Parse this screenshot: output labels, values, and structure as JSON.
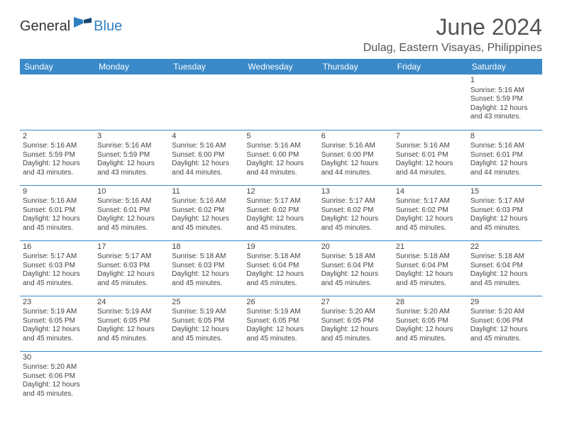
{
  "logo": {
    "part1": "General",
    "part2": "Blue"
  },
  "title": "June 2024",
  "location": "Dulag, Eastern Visayas, Philippines",
  "colors": {
    "header_bg": "#3a8ac9",
    "header_text": "#ffffff",
    "border": "#3a8ac9",
    "text": "#444444",
    "title_text": "#555555",
    "logo_accent": "#2f7fc1"
  },
  "weekdays": [
    "Sunday",
    "Monday",
    "Tuesday",
    "Wednesday",
    "Thursday",
    "Friday",
    "Saturday"
  ],
  "weeks": [
    [
      null,
      null,
      null,
      null,
      null,
      null,
      {
        "n": "1",
        "sr": "Sunrise: 5:16 AM",
        "ss": "Sunset: 5:59 PM",
        "d1": "Daylight: 12 hours",
        "d2": "and 43 minutes."
      }
    ],
    [
      {
        "n": "2",
        "sr": "Sunrise: 5:16 AM",
        "ss": "Sunset: 5:59 PM",
        "d1": "Daylight: 12 hours",
        "d2": "and 43 minutes."
      },
      {
        "n": "3",
        "sr": "Sunrise: 5:16 AM",
        "ss": "Sunset: 5:59 PM",
        "d1": "Daylight: 12 hours",
        "d2": "and 43 minutes."
      },
      {
        "n": "4",
        "sr": "Sunrise: 5:16 AM",
        "ss": "Sunset: 6:00 PM",
        "d1": "Daylight: 12 hours",
        "d2": "and 44 minutes."
      },
      {
        "n": "5",
        "sr": "Sunrise: 5:16 AM",
        "ss": "Sunset: 6:00 PM",
        "d1": "Daylight: 12 hours",
        "d2": "and 44 minutes."
      },
      {
        "n": "6",
        "sr": "Sunrise: 5:16 AM",
        "ss": "Sunset: 6:00 PM",
        "d1": "Daylight: 12 hours",
        "d2": "and 44 minutes."
      },
      {
        "n": "7",
        "sr": "Sunrise: 5:16 AM",
        "ss": "Sunset: 6:01 PM",
        "d1": "Daylight: 12 hours",
        "d2": "and 44 minutes."
      },
      {
        "n": "8",
        "sr": "Sunrise: 5:16 AM",
        "ss": "Sunset: 6:01 PM",
        "d1": "Daylight: 12 hours",
        "d2": "and 44 minutes."
      }
    ],
    [
      {
        "n": "9",
        "sr": "Sunrise: 5:16 AM",
        "ss": "Sunset: 6:01 PM",
        "d1": "Daylight: 12 hours",
        "d2": "and 45 minutes."
      },
      {
        "n": "10",
        "sr": "Sunrise: 5:16 AM",
        "ss": "Sunset: 6:01 PM",
        "d1": "Daylight: 12 hours",
        "d2": "and 45 minutes."
      },
      {
        "n": "11",
        "sr": "Sunrise: 5:16 AM",
        "ss": "Sunset: 6:02 PM",
        "d1": "Daylight: 12 hours",
        "d2": "and 45 minutes."
      },
      {
        "n": "12",
        "sr": "Sunrise: 5:17 AM",
        "ss": "Sunset: 6:02 PM",
        "d1": "Daylight: 12 hours",
        "d2": "and 45 minutes."
      },
      {
        "n": "13",
        "sr": "Sunrise: 5:17 AM",
        "ss": "Sunset: 6:02 PM",
        "d1": "Daylight: 12 hours",
        "d2": "and 45 minutes."
      },
      {
        "n": "14",
        "sr": "Sunrise: 5:17 AM",
        "ss": "Sunset: 6:02 PM",
        "d1": "Daylight: 12 hours",
        "d2": "and 45 minutes."
      },
      {
        "n": "15",
        "sr": "Sunrise: 5:17 AM",
        "ss": "Sunset: 6:03 PM",
        "d1": "Daylight: 12 hours",
        "d2": "and 45 minutes."
      }
    ],
    [
      {
        "n": "16",
        "sr": "Sunrise: 5:17 AM",
        "ss": "Sunset: 6:03 PM",
        "d1": "Daylight: 12 hours",
        "d2": "and 45 minutes."
      },
      {
        "n": "17",
        "sr": "Sunrise: 5:17 AM",
        "ss": "Sunset: 6:03 PM",
        "d1": "Daylight: 12 hours",
        "d2": "and 45 minutes."
      },
      {
        "n": "18",
        "sr": "Sunrise: 5:18 AM",
        "ss": "Sunset: 6:03 PM",
        "d1": "Daylight: 12 hours",
        "d2": "and 45 minutes."
      },
      {
        "n": "19",
        "sr": "Sunrise: 5:18 AM",
        "ss": "Sunset: 6:04 PM",
        "d1": "Daylight: 12 hours",
        "d2": "and 45 minutes."
      },
      {
        "n": "20",
        "sr": "Sunrise: 5:18 AM",
        "ss": "Sunset: 6:04 PM",
        "d1": "Daylight: 12 hours",
        "d2": "and 45 minutes."
      },
      {
        "n": "21",
        "sr": "Sunrise: 5:18 AM",
        "ss": "Sunset: 6:04 PM",
        "d1": "Daylight: 12 hours",
        "d2": "and 45 minutes."
      },
      {
        "n": "22",
        "sr": "Sunrise: 5:18 AM",
        "ss": "Sunset: 6:04 PM",
        "d1": "Daylight: 12 hours",
        "d2": "and 45 minutes."
      }
    ],
    [
      {
        "n": "23",
        "sr": "Sunrise: 5:19 AM",
        "ss": "Sunset: 6:05 PM",
        "d1": "Daylight: 12 hours",
        "d2": "and 45 minutes."
      },
      {
        "n": "24",
        "sr": "Sunrise: 5:19 AM",
        "ss": "Sunset: 6:05 PM",
        "d1": "Daylight: 12 hours",
        "d2": "and 45 minutes."
      },
      {
        "n": "25",
        "sr": "Sunrise: 5:19 AM",
        "ss": "Sunset: 6:05 PM",
        "d1": "Daylight: 12 hours",
        "d2": "and 45 minutes."
      },
      {
        "n": "26",
        "sr": "Sunrise: 5:19 AM",
        "ss": "Sunset: 6:05 PM",
        "d1": "Daylight: 12 hours",
        "d2": "and 45 minutes."
      },
      {
        "n": "27",
        "sr": "Sunrise: 5:20 AM",
        "ss": "Sunset: 6:05 PM",
        "d1": "Daylight: 12 hours",
        "d2": "and 45 minutes."
      },
      {
        "n": "28",
        "sr": "Sunrise: 5:20 AM",
        "ss": "Sunset: 6:05 PM",
        "d1": "Daylight: 12 hours",
        "d2": "and 45 minutes."
      },
      {
        "n": "29",
        "sr": "Sunrise: 5:20 AM",
        "ss": "Sunset: 6:06 PM",
        "d1": "Daylight: 12 hours",
        "d2": "and 45 minutes."
      }
    ],
    [
      {
        "n": "30",
        "sr": "Sunrise: 5:20 AM",
        "ss": "Sunset: 6:06 PM",
        "d1": "Daylight: 12 hours",
        "d2": "and 45 minutes."
      },
      null,
      null,
      null,
      null,
      null,
      null
    ]
  ]
}
